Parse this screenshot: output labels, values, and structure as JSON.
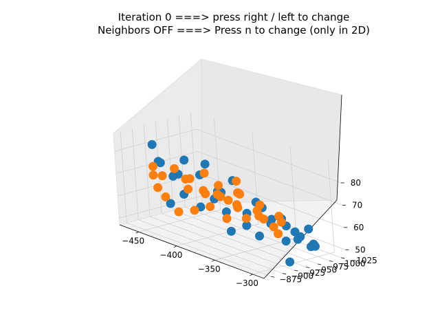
{
  "chart_data": {
    "type": "scatter",
    "title_lines": [
      "Iteration 0 ===> press right / left to change",
      "Neighbors OFF ===> Press n to change (only in 2D)"
    ],
    "projection": "3d",
    "grid": true,
    "legend": "none",
    "axes": {
      "x": {
        "ticks": [
          -450,
          -400,
          -350,
          -300
        ],
        "range": [
          -475,
          -285
        ],
        "label": ""
      },
      "y": {
        "ticks": [
          -1025,
          -1000,
          -975,
          -950,
          -925,
          -900,
          -875
        ],
        "range": [
          -1035,
          -860
        ],
        "label": ""
      },
      "z": {
        "ticks": [
          50,
          60,
          70,
          80
        ],
        "range": [
          47,
          88
        ],
        "label": ""
      }
    },
    "series": [
      {
        "color": "#1f77b4",
        "points": [
          [
            -430,
            -880,
            80
          ],
          [
            -430,
            -900,
            60
          ],
          [
            -430,
            -920,
            72
          ],
          [
            -425,
            -955,
            56
          ],
          [
            -420,
            -985,
            62
          ],
          [
            -415,
            -1010,
            66
          ],
          [
            -405,
            -1020,
            52
          ],
          [
            -395,
            -1025,
            58
          ],
          [
            -380,
            -1030,
            50
          ],
          [
            -365,
            -1030,
            54
          ],
          [
            -345,
            -1025,
            51
          ],
          [
            -320,
            -1015,
            56
          ],
          [
            -305,
            -1000,
            52
          ],
          [
            -290,
            -980,
            54
          ],
          [
            -290,
            -950,
            60
          ],
          [
            -292,
            -925,
            66
          ],
          [
            -295,
            -900,
            70
          ],
          [
            -300,
            -880,
            63
          ],
          [
            -310,
            -870,
            67
          ],
          [
            -330,
            -868,
            62
          ],
          [
            -350,
            -868,
            74
          ],
          [
            -370,
            -872,
            82
          ],
          [
            -395,
            -875,
            70
          ],
          [
            -410,
            -878,
            76
          ],
          [
            -440,
            -885,
            86
          ],
          [
            -440,
            -900,
            77
          ],
          [
            -395,
            -880,
            85
          ],
          [
            -380,
            -900,
            84
          ],
          [
            -345,
            -1005,
            48
          ],
          [
            -315,
            -1010,
            49
          ],
          [
            -300,
            -940,
            48
          ],
          [
            -300,
            -960,
            57
          ],
          [
            -310,
            -905,
            73
          ],
          [
            -425,
            -1000,
            60
          ],
          [
            -410,
            -985,
            54
          ]
        ]
      },
      {
        "color": "#ff7f0e",
        "points": [
          [
            -470,
            -930,
            66
          ],
          [
            -465,
            -945,
            56
          ],
          [
            -455,
            -955,
            50
          ],
          [
            -440,
            -965,
            52
          ],
          [
            -425,
            -975,
            55
          ],
          [
            -410,
            -985,
            51
          ],
          [
            -390,
            -995,
            53
          ],
          [
            -370,
            -1000,
            55
          ],
          [
            -355,
            -1005,
            50
          ],
          [
            -340,
            -990,
            58
          ],
          [
            -330,
            -970,
            63
          ],
          [
            -325,
            -950,
            60
          ],
          [
            -330,
            -925,
            68
          ],
          [
            -345,
            -910,
            75
          ],
          [
            -365,
            -905,
            71
          ],
          [
            -385,
            -905,
            79
          ],
          [
            -405,
            -905,
            74
          ],
          [
            -425,
            -905,
            76
          ],
          [
            -445,
            -910,
            70
          ],
          [
            -460,
            -915,
            72
          ],
          [
            -465,
            -930,
            61
          ],
          [
            -450,
            -970,
            60
          ],
          [
            -420,
            -955,
            64
          ],
          [
            -395,
            -945,
            66
          ],
          [
            -375,
            -955,
            62
          ],
          [
            -360,
            -975,
            59
          ],
          [
            -345,
            -955,
            67
          ],
          [
            -400,
            -975,
            61
          ],
          [
            -430,
            -935,
            69
          ],
          [
            -380,
            -925,
            73
          ],
          [
            -355,
            -930,
            72
          ],
          [
            -440,
            -990,
            58
          ],
          [
            -405,
            -1000,
            57
          ],
          [
            -385,
            -975,
            66
          ],
          [
            -365,
            -940,
            76
          ]
        ]
      }
    ]
  }
}
